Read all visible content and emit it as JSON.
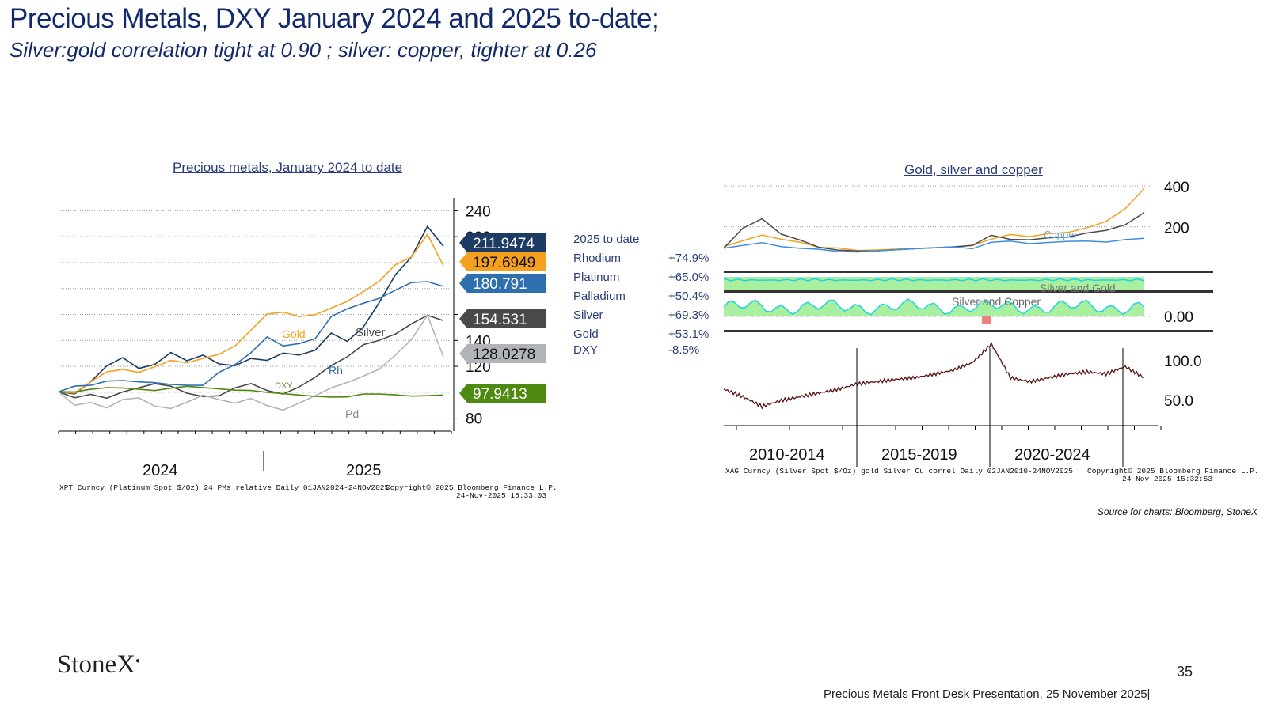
{
  "slide": {
    "title": "Precious Metals, DXY January 2024 and 2025 to-date;",
    "subtitle": "Silver:gold correlation tight at 0.90 ; silver: copper, tighter at 0.26",
    "source": "Source for charts: Bloomberg, StoneX",
    "logo": "StoneX",
    "page_number": "35",
    "footer": "Precious Metals Front Desk Presentation, 25 November 2025|"
  },
  "perf_table": {
    "header": "2025 to date",
    "rows": [
      {
        "name": "Rhodium",
        "value": "+74.9%"
      },
      {
        "name": "Platinum",
        "value": "+65.0%"
      },
      {
        "name": "Palladium",
        "value": "+50.4%"
      },
      {
        "name": "Silver",
        "value": "+69.3%"
      },
      {
        "name": "Gold",
        "value": "+53.1%"
      },
      {
        "name": "DXY",
        "value": "-8.5%"
      }
    ]
  },
  "colors": {
    "title": "#122a6b",
    "platinum": "#1d3c63",
    "gold": "#f5a01f",
    "rhodium": "#2e6fb0",
    "silver": "#4a4a4a",
    "palladium": "#b0b4b8",
    "dxy": "#4f8a10",
    "copper_ratio": "#5e1a1a",
    "correl_fill": "#a8f0a0",
    "correl_line": "#22d3e0"
  },
  "chart_data": [
    {
      "type": "line",
      "title": "Precious metals, January 2024 to date",
      "x_labels": [
        "2024",
        "2025"
      ],
      "y_ticks": [
        80,
        100,
        120,
        140,
        160,
        180,
        200,
        220,
        240
      ],
      "y_tick_labels": [
        "240",
        "220",
        "160",
        "140",
        "120",
        "80"
      ],
      "ylim": [
        70,
        250
      ],
      "grid": true,
      "footnote": "XPT Curncy (Platinum Spot  $/Oz) 24 PMs relative Daily 01JAN2024-24NOV2025",
      "copyright": "Copyright© 2025 Bloomberg Finance L.P.",
      "timestamp": "24-Nov-2025 15:33:03",
      "series": [
        {
          "id": "platinum",
          "color": "#1d3c63",
          "last_value": "211.9474",
          "values": [
            100,
            98,
            108,
            120,
            126,
            118,
            122,
            130,
            125,
            128,
            122,
            120,
            126,
            124,
            130,
            128,
            132,
            145,
            140,
            150,
            170,
            190,
            205,
            228,
            212
          ]
        },
        {
          "id": "gold",
          "label": "Gold",
          "color": "#f5a01f",
          "last_value": "197.6949",
          "values": [
            100,
            99,
            108,
            115,
            118,
            116,
            120,
            124,
            122,
            126,
            130,
            136,
            148,
            160,
            162,
            158,
            160,
            165,
            170,
            178,
            185,
            198,
            205,
            222,
            198
          ]
        },
        {
          "id": "rhodium",
          "label": "Rh",
          "color": "#2e6fb0",
          "last_value": "180.791",
          "values": [
            100,
            104,
            106,
            108,
            109,
            108,
            108,
            106,
            106,
            106,
            115,
            122,
            130,
            142,
            135,
            138,
            142,
            158,
            165,
            168,
            172,
            178,
            184,
            186,
            181
          ]
        },
        {
          "id": "silver",
          "label": "Silver",
          "color": "#4a4a4a",
          "last_value": "154.531",
          "values": [
            100,
            96,
            98,
            95,
            100,
            104,
            106,
            104,
            100,
            96,
            98,
            104,
            106,
            102,
            98,
            104,
            112,
            120,
            128,
            136,
            140,
            145,
            152,
            160,
            155
          ]
        },
        {
          "id": "palladium",
          "label": "Pd",
          "color": "#b0b4b8",
          "last_value": "128.0278",
          "values": [
            100,
            90,
            92,
            88,
            94,
            96,
            90,
            88,
            92,
            98,
            94,
            92,
            96,
            90,
            86,
            92,
            98,
            104,
            108,
            112,
            118,
            128,
            140,
            160,
            128
          ]
        },
        {
          "id": "dxy",
          "label": "DXY",
          "color": "#4f8a10",
          "last_value": "97.9413",
          "values": [
            100,
            101,
            102,
            103,
            104,
            103,
            102,
            103,
            104,
            103,
            102,
            101,
            102,
            100,
            99,
            98,
            97,
            97,
            97,
            98,
            98,
            98,
            97,
            98,
            98
          ]
        }
      ]
    },
    {
      "type": "line",
      "title": "Gold, silver and copper",
      "x_labels": [
        "2010-2014",
        "2015-2019",
        "2020-2024"
      ],
      "footnote": "XAG Curncy (Silver Spot  $/Oz) gold Silver Cu correl Daily 02JAN2010-24NOV2025",
      "copyright": "Copyright© 2025 Bloomberg Finance L.P.",
      "timestamp": "24-Nov-2025 15:32:53",
      "panels": [
        {
          "id": "prices",
          "y_tick_labels": [
            "400",
            "200"
          ],
          "ylim": [
            0,
            420
          ],
          "grid": true,
          "series": [
            {
              "id": "gold",
              "color": "#f5a01f",
              "values": [
                110,
                140,
                170,
                150,
                135,
                110,
                100,
                95,
                90,
                95,
                100,
                105,
                110,
                120,
                150,
                170,
                160,
                170,
                175,
                200,
                230,
                300,
                400
              ]
            },
            {
              "id": "silver",
              "color": "#4a4a4a",
              "values": [
                100,
                200,
                250,
                170,
                140,
                110,
                95,
                90,
                85,
                90,
                95,
                100,
                110,
                120,
                170,
                150,
                140,
                150,
                160,
                175,
                190,
                220,
                280
              ]
            },
            {
              "id": "copper",
              "label": "Copper",
              "color": "#3b8fe0",
              "values": [
                100,
                120,
                130,
                110,
                105,
                95,
                85,
                80,
                85,
                90,
                95,
                100,
                105,
                100,
                130,
                135,
                125,
                135,
                140,
                135,
                130,
                140,
                155
              ]
            }
          ]
        },
        {
          "id": "silver_gold_correl",
          "label": "Silver and Gold",
          "value": 0.9
        },
        {
          "id": "silver_copper_correl",
          "label": "Silver and Copper",
          "value": 0.26,
          "y_tick_labels": [
            "0.00"
          ]
        },
        {
          "id": "ratio",
          "y_tick_labels": [
            "100.0",
            "50.0"
          ],
          "ylim": [
            25,
            130
          ],
          "series": [
            {
              "id": "gold_silver_ratio",
              "color": "#5e1a1a",
              "values": [
                65,
                55,
                42,
                50,
                55,
                60,
                65,
                72,
                75,
                78,
                80,
                85,
                90,
                100,
                125,
                80,
                75,
                80,
                85,
                88,
                85,
                95,
                80
              ]
            }
          ]
        }
      ]
    }
  ]
}
